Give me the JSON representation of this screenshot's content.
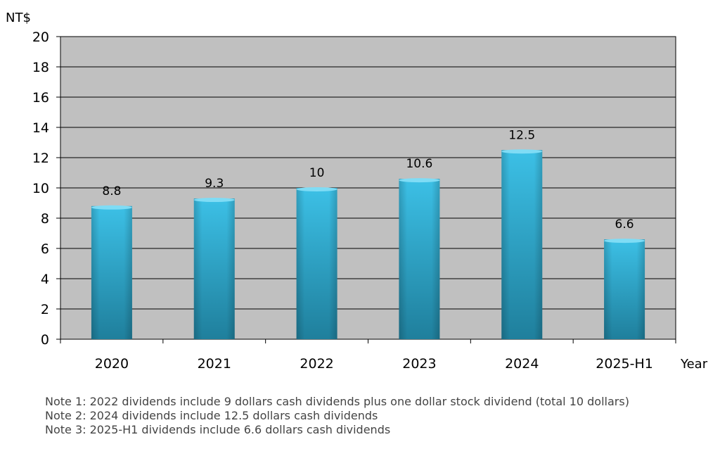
{
  "chart_data": {
    "type": "bar",
    "ylabel": "NT$",
    "xlabel": "Year",
    "categories": [
      "2020",
      "2021",
      "2022",
      "2023",
      "2024",
      "2025-H1"
    ],
    "values": [
      8.8,
      9.3,
      10,
      10.6,
      12.5,
      6.6
    ],
    "data_labels": [
      "8.8",
      "9.3",
      "10",
      "10.6",
      "12.5",
      "6.6"
    ],
    "ylim": [
      0,
      20
    ],
    "yticks": [
      0,
      2,
      4,
      6,
      8,
      10,
      12,
      14,
      16,
      18,
      20
    ],
    "grid": true,
    "legend": "none",
    "colors": {
      "bar": "#33b3d8",
      "bar_dark": "#1f7f9c",
      "plot_background": "#c0c0c0",
      "gridline": "#000000"
    }
  },
  "notes": [
    "Note 1: 2022 dividends include 9 dollars cash dividends plus one dollar stock dividend (total 10 dollars)",
    "Note 2: 2024 dividends include 12.5 dollars cash dividends",
    "Note 3: 2025-H1 dividends include 6.6 dollars cash dividends"
  ]
}
